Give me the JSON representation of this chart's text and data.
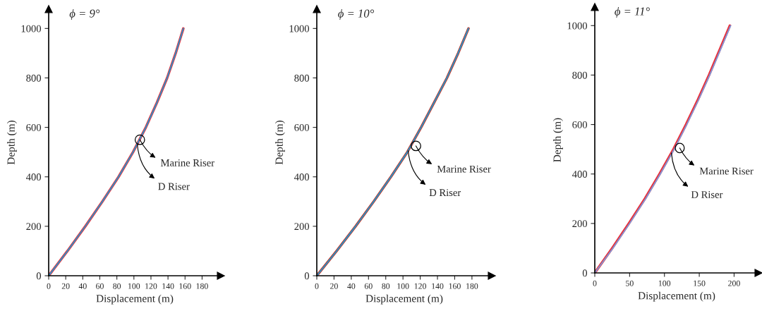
{
  "chart_data": [
    {
      "type": "line",
      "title": "ϕ = 9°",
      "xlabel": "Displacement (m)",
      "ylabel": "Depth (m)",
      "legend": false,
      "grid": false,
      "xlim": [
        0,
        202
      ],
      "ylim": [
        0,
        1078
      ],
      "xticks": [
        0,
        20,
        40,
        60,
        80,
        100,
        120,
        140,
        160,
        180
      ],
      "yticks": [
        0,
        200,
        400,
        600,
        800,
        1000
      ],
      "series": [
        {
          "color": "#e8323c",
          "x": [
            0,
            22,
            43,
            63,
            82,
            99,
            114,
            127,
            139,
            149,
            158
          ],
          "values": [
            0,
            100,
            200,
            300,
            400,
            500,
            600,
            700,
            800,
            900,
            1000
          ]
        },
        {
          "color": "#1a9ad6",
          "x": [
            0,
            22,
            43,
            63,
            82,
            99,
            114,
            127,
            139,
            149,
            158
          ],
          "values": [
            0,
            100,
            200,
            300,
            400,
            500,
            600,
            700,
            800,
            900,
            1000
          ]
        }
      ],
      "annotations": [
        {
          "text": "Marine Riser",
          "x": 107,
          "y": 550
        },
        {
          "text": "D Riser",
          "x": 104,
          "y": 530
        }
      ]
    },
    {
      "type": "line",
      "title": "ϕ = 10°",
      "xlabel": "Displacement (m)",
      "ylabel": "Depth (m)",
      "legend": false,
      "grid": false,
      "xlim": [
        0,
        203
      ],
      "ylim": [
        0,
        1078
      ],
      "xticks": [
        0,
        20,
        40,
        60,
        80,
        100,
        120,
        140,
        160,
        180
      ],
      "yticks": [
        0,
        200,
        400,
        600,
        800,
        1000
      ],
      "series": [
        {
          "color": "#c0392b",
          "x": [
            0,
            23,
            45,
            66,
            86,
            105,
            121,
            136,
            151,
            164,
            176
          ],
          "values": [
            0,
            100,
            200,
            300,
            400,
            500,
            600,
            700,
            800,
            900,
            1000
          ]
        },
        {
          "color": "#1a9ad6",
          "x": [
            0,
            23,
            45,
            66,
            86,
            105,
            121,
            136,
            151,
            164,
            176
          ],
          "values": [
            0,
            100,
            200,
            300,
            400,
            500,
            600,
            700,
            800,
            900,
            1000
          ]
        }
      ],
      "annotations": [
        {
          "text": "Marine Riser",
          "x": 115,
          "y": 525
        },
        {
          "text": "D Riser",
          "x": 106,
          "y": 505
        }
      ]
    },
    {
      "type": "line",
      "title": "ϕ = 11°",
      "xlabel": "Displacement (m)",
      "ylabel": "Depth (m)",
      "legend": false,
      "grid": false,
      "xlim": [
        0,
        235
      ],
      "ylim": [
        0,
        1075
      ],
      "xticks": [
        0,
        50,
        100,
        150,
        200
      ],
      "yticks": [
        0,
        200,
        400,
        600,
        800,
        1000
      ],
      "series": [
        {
          "color": "#e8323c",
          "x": [
            0,
            25,
            49,
            72,
            93,
            113,
            131,
            148,
            164,
            179,
            194
          ],
          "values": [
            0,
            100,
            200,
            300,
            400,
            500,
            600,
            700,
            800,
            900,
            1000
          ]
        },
        {
          "color": "#7a9be0",
          "x": [
            0,
            26,
            50,
            73,
            94,
            114,
            132,
            149,
            165,
            180,
            195
          ],
          "values": [
            0,
            100,
            200,
            300,
            400,
            500,
            600,
            700,
            800,
            900,
            1000
          ]
        }
      ],
      "annotations": [
        {
          "text": "Marine Riser",
          "x": 122,
          "y": 505
        },
        {
          "text": "D Riser",
          "x": 110,
          "y": 485
        }
      ]
    }
  ]
}
